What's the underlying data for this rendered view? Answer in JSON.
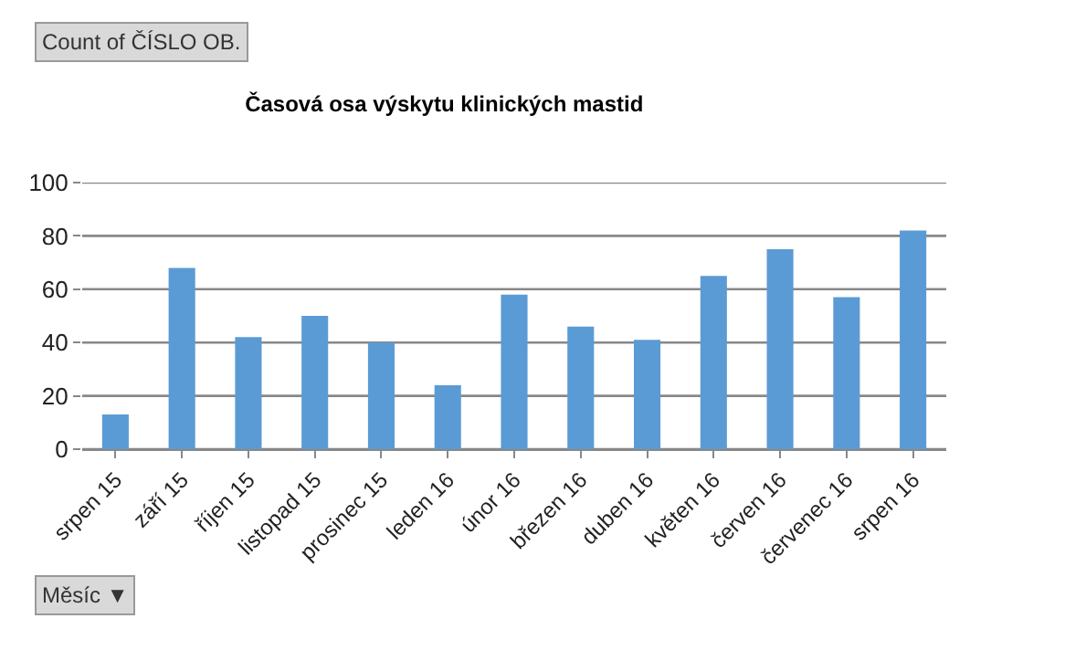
{
  "chart_data": {
    "type": "bar",
    "title": "Časová osa výskytu klinických mastid",
    "categories": [
      "srpen 15",
      "září 15",
      "říjen 15",
      "listopad 15",
      "prosinec 15",
      "leden 16",
      "únor 16",
      "březen 16",
      "duben 16",
      "květen 16",
      "červen 16",
      "červenec 16",
      "srpen 16"
    ],
    "values": [
      13,
      68,
      42,
      50,
      40,
      24,
      58,
      46,
      41,
      65,
      75,
      57,
      82
    ],
    "color": "#5b9bd5",
    "ylim": [
      0,
      100
    ],
    "yticks": [
      0,
      20,
      40,
      60,
      80,
      100
    ],
    "grid": "y",
    "legend": false,
    "annotations": [
      "Count of ČÍSLO OB.",
      "Měsíc ▼"
    ]
  }
}
